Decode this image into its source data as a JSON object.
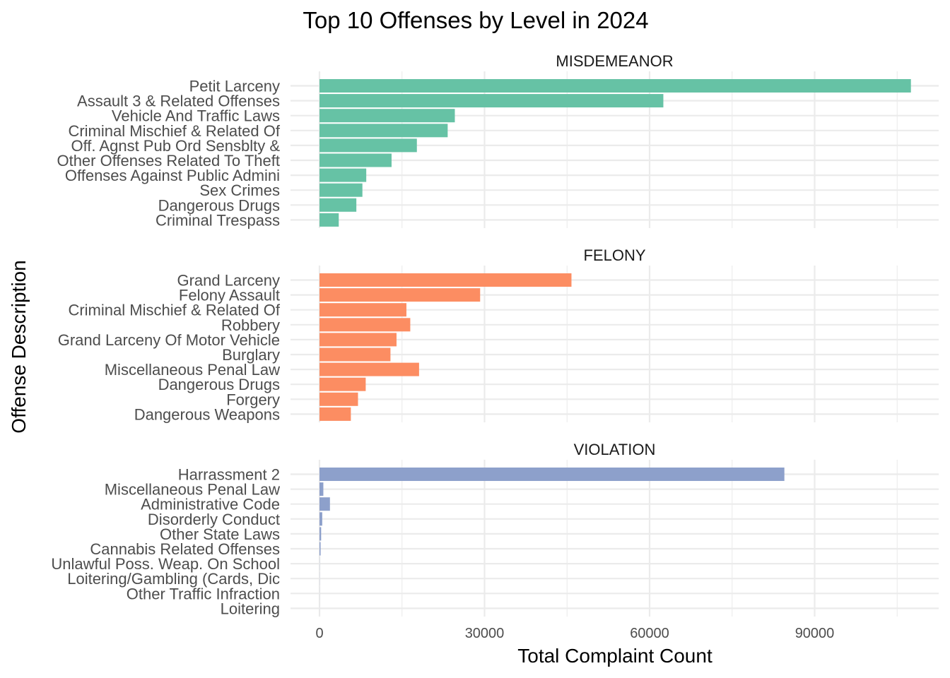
{
  "chart_data": {
    "type": "bar",
    "orientation": "horizontal",
    "title": "Top 10 Offenses by Level in 2024",
    "xlabel": "Total Complaint Count",
    "ylabel": "Offense Description",
    "xlim": [
      0,
      112000
    ],
    "x_ticks": [
      0,
      30000,
      60000,
      90000
    ],
    "x_tick_labels": [
      "0",
      "30000",
      "60000",
      "90000"
    ],
    "grid": true,
    "legend": "none",
    "panels": [
      {
        "name": "MISDEMEANOR",
        "color": "#66C2A5",
        "categories": [
          "Petit Larceny",
          "Assault 3 & Related Offenses",
          "Vehicle And Traffic Laws",
          "Criminal Mischief & Related Of",
          "Off. Agnst Pub Ord Sensblty &",
          "Other Offenses Related To Theft",
          "Offenses Against Public Admini",
          "Sex Crimes",
          "Dangerous Drugs",
          "Criminal Trespass"
        ],
        "values": [
          107500,
          62500,
          24600,
          23300,
          17700,
          13100,
          8500,
          7800,
          6700,
          3500
        ]
      },
      {
        "name": "FELONY",
        "color": "#FC8D62",
        "categories": [
          "Grand Larceny",
          "Felony Assault",
          "Criminal Mischief & Related Of",
          "Robbery",
          "Grand Larceny Of Motor Vehicle",
          "Burglary",
          "Miscellaneous Penal Law",
          "Dangerous Drugs",
          "Forgery",
          "Dangerous Weapons"
        ],
        "values": [
          45800,
          29200,
          15800,
          16500,
          14000,
          12900,
          18100,
          8400,
          7000,
          5700
        ]
      },
      {
        "name": "VIOLATION",
        "color": "#8DA0CB",
        "categories": [
          "Harrassment 2",
          "Miscellaneous Penal Law",
          "Administrative Code",
          "Disorderly Conduct",
          "Other State Laws",
          "Cannabis Related Offenses",
          "Unlawful Poss. Weap. On School",
          "Loitering/Gambling (Cards, Dic",
          "Other Traffic Infraction",
          "Loitering"
        ],
        "values": [
          84500,
          700,
          1900,
          500,
          300,
          200,
          20,
          15,
          10,
          5
        ]
      }
    ]
  }
}
